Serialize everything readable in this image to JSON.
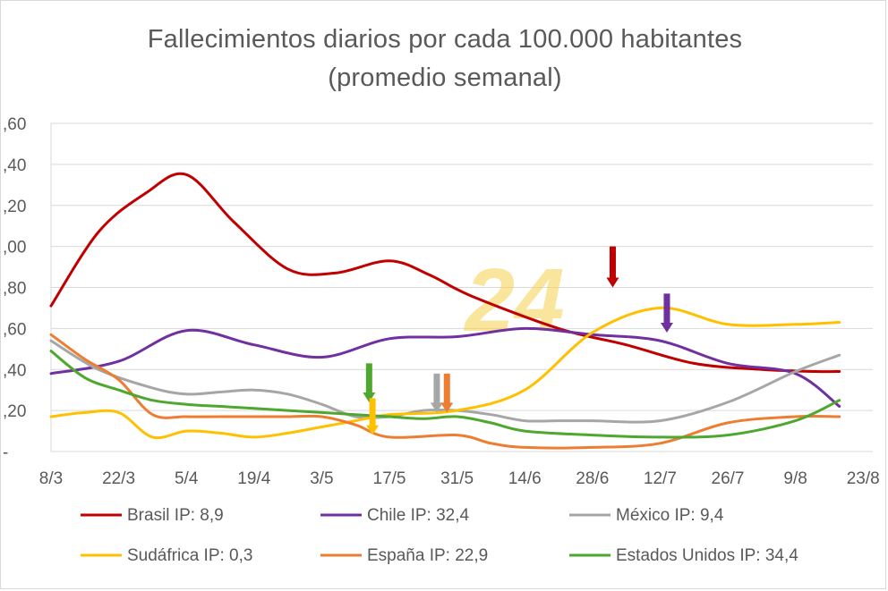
{
  "chart_data": {
    "type": "line",
    "title": "Fallecimientos diarios por cada 100.000 habitantes",
    "subtitle": "(promedio semanal)",
    "watermark": "24",
    "xlabel": "",
    "ylabel": "",
    "x_labels": [
      "8/3",
      "22/3",
      "5/4",
      "19/4",
      "3/5",
      "17/5",
      "31/5",
      "14/6",
      "28/6",
      "12/7",
      "26/7",
      "9/8",
      "23/8"
    ],
    "y_tick_labels": [
      "-",
      ",20",
      ",40",
      ",60",
      ",80",
      ",00",
      ",20",
      ",40",
      ",60"
    ],
    "ylim": [
      0,
      1.6
    ],
    "grid": true,
    "legend_position": "bottom",
    "series": [
      {
        "name": "Brasil IP: 8,9",
        "color": "#c00000",
        "x": [
          0,
          0.7,
          1.4,
          2,
          2.7,
          3.5,
          4.2,
          5,
          5.6,
          6.2,
          7.5,
          8.5,
          9.5,
          10.5,
          11.3,
          11.65
        ],
        "values": [
          0.71,
          1.07,
          1.26,
          1.35,
          1.12,
          0.89,
          0.87,
          0.93,
          0.86,
          0.76,
          0.6,
          0.52,
          0.43,
          0.4,
          0.39,
          0.39
        ]
      },
      {
        "name": "Chile IP: 32,4",
        "color": "#7030a0",
        "x": [
          0,
          1,
          2,
          3,
          4,
          5,
          6,
          7,
          8,
          9,
          10,
          11,
          11.65
        ],
        "values": [
          0.38,
          0.44,
          0.59,
          0.52,
          0.46,
          0.55,
          0.56,
          0.6,
          0.57,
          0.54,
          0.43,
          0.38,
          0.22
        ]
      },
      {
        "name": "México IP: 9,4",
        "color": "#a6a6a6",
        "x": [
          0,
          0.7,
          1.5,
          2,
          2.5,
          3,
          3.5,
          4,
          4.5,
          5,
          5.5,
          6,
          6.5,
          7,
          7.5,
          8,
          9,
          10,
          11,
          11.65
        ],
        "values": [
          0.54,
          0.4,
          0.31,
          0.28,
          0.29,
          0.3,
          0.28,
          0.23,
          0.17,
          0.17,
          0.2,
          0.2,
          0.18,
          0.15,
          0.15,
          0.15,
          0.15,
          0.24,
          0.39,
          0.47
        ]
      },
      {
        "name": "Sudáfrica IP: 0,3",
        "color": "#ffc000",
        "x": [
          0,
          0.5,
          1,
          1.5,
          2,
          2.5,
          3,
          3.5,
          4,
          4.5,
          5,
          6,
          7,
          8,
          9,
          10,
          11,
          11.65
        ],
        "values": [
          0.17,
          0.19,
          0.19,
          0.07,
          0.1,
          0.09,
          0.07,
          0.09,
          0.12,
          0.15,
          0.18,
          0.2,
          0.3,
          0.58,
          0.7,
          0.62,
          0.62,
          0.63
        ]
      },
      {
        "name": "España IP: 22,9",
        "color": "#ed7d31",
        "x": [
          0,
          0.5,
          1,
          1.5,
          2,
          2.5,
          3,
          3.5,
          4,
          4.5,
          5,
          6,
          6.5,
          7,
          8,
          9,
          10,
          11,
          11.65
        ],
        "values": [
          0.57,
          0.45,
          0.35,
          0.18,
          0.17,
          0.17,
          0.17,
          0.17,
          0.17,
          0.13,
          0.07,
          0.08,
          0.04,
          0.02,
          0.02,
          0.04,
          0.14,
          0.17,
          0.17
        ]
      },
      {
        "name": "Estados Unidos IP: 34,4",
        "color": "#4ea72e",
        "x": [
          0,
          0.5,
          1,
          1.5,
          2,
          2.5,
          3,
          3.5,
          4,
          4.5,
          5,
          5.5,
          6,
          6.5,
          7,
          8,
          9,
          10,
          11,
          11.65
        ],
        "values": [
          0.49,
          0.36,
          0.3,
          0.25,
          0.23,
          0.22,
          0.21,
          0.2,
          0.19,
          0.18,
          0.17,
          0.16,
          0.17,
          0.14,
          0.1,
          0.08,
          0.07,
          0.08,
          0.15,
          0.25
        ]
      }
    ],
    "annotations": [
      {
        "type": "arrow",
        "color": "#c00000",
        "x": 8.3,
        "y_from": 1.0,
        "y_to": 0.8
      },
      {
        "type": "arrow",
        "color": "#7030a0",
        "x": 9.1,
        "y_from": 0.77,
        "y_to": 0.58
      },
      {
        "type": "arrow",
        "color": "#4ea72e",
        "x": 4.7,
        "y_from": 0.43,
        "y_to": 0.24
      },
      {
        "type": "arrow",
        "color": "#ffc000",
        "x": 4.75,
        "y_from": 0.26,
        "y_to": 0.08
      },
      {
        "type": "arrow",
        "color": "#a6a6a6",
        "x": 5.7,
        "y_from": 0.38,
        "y_to": 0.19
      },
      {
        "type": "arrow",
        "color": "#ed7d31",
        "x": 5.85,
        "y_from": 0.38,
        "y_to": 0.19
      }
    ]
  }
}
